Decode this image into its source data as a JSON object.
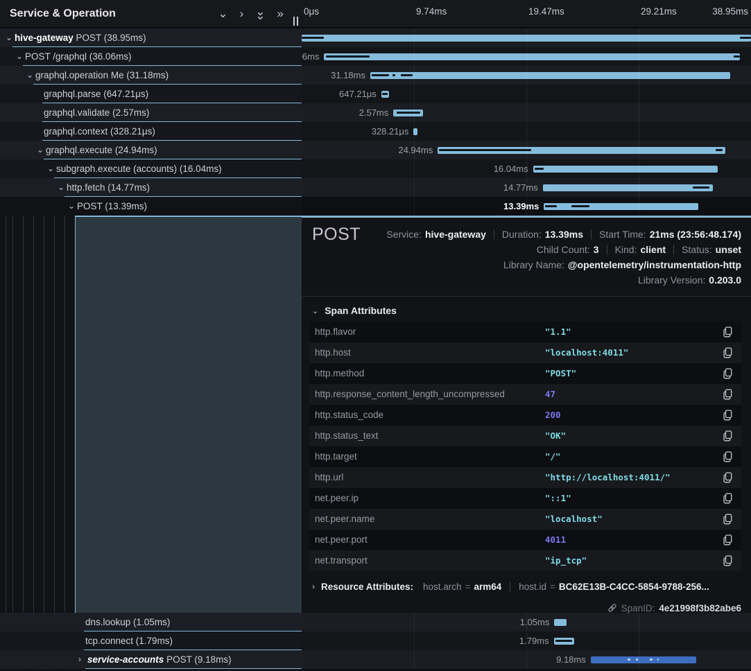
{
  "theme": {
    "accent_blue": "#85bcdc",
    "bar_overlay_dark": "#11181f",
    "service_accounts_bar": "#3d6ec0",
    "service_accounts_dash": "#b9d4ee",
    "string_value_color": "#7fdbe6",
    "number_value_color": "#7a79ef",
    "selected_block_color": "#2b3840",
    "row_underline_color": "#84b7d4"
  },
  "header": {
    "title": "Service & Operation"
  },
  "toolbar_icons": [
    {
      "name": "chevron-down-icon",
      "glyph": "⌄",
      "stacked": false
    },
    {
      "name": "chevron-right-icon",
      "glyph": "›",
      "stacked": false
    },
    {
      "name": "collapse-all-icon",
      "glyph": "⌄",
      "stacked": true
    },
    {
      "name": "expand-all-icon",
      "glyph": "»",
      "stacked": false
    }
  ],
  "timeline": {
    "total_ms": 38.95,
    "ticks": [
      {
        "label": "0μs",
        "pct": 0
      },
      {
        "label": "9.74ms",
        "pct": 25
      },
      {
        "label": "19.47ms",
        "pct": 50
      },
      {
        "label": "29.21ms",
        "pct": 75
      },
      {
        "label": "38.95ms",
        "pct": 100
      }
    ]
  },
  "spans": [
    {
      "section": "top",
      "service": "hive-gateway",
      "italic": false,
      "operation": "POST",
      "duration": "38.95ms",
      "depth": 0,
      "chevron": "down",
      "start_ms": 0,
      "duration_ms": 38.95,
      "selected": false,
      "bar": "default",
      "overlays": [
        [
          0,
          0.05
        ],
        [
          0.975,
          0.025
        ]
      ]
    },
    {
      "section": "top",
      "service": null,
      "operation": "POST /graphql",
      "duration": "36.06ms",
      "depth": 1,
      "chevron": "down",
      "start_ms": 1.95,
      "duration_ms": 36.06,
      "selected": false,
      "bar": "default",
      "overlays": [
        [
          0.004,
          0.105
        ],
        [
          0.985,
          0.015
        ]
      ]
    },
    {
      "section": "top",
      "service": null,
      "operation": "graphql.operation Me",
      "duration": "31.18ms",
      "depth": 2,
      "chevron": "down",
      "start_ms": 5.95,
      "duration_ms": 31.18,
      "selected": false,
      "bar": "default",
      "overlays": [
        [
          0.004,
          0.048
        ],
        [
          0.062,
          0.008
        ],
        [
          0.085,
          0.032
        ]
      ]
    },
    {
      "section": "top",
      "service": null,
      "operation": "graphql.parse",
      "duration": "647.21μs",
      "depth": 3,
      "chevron": null,
      "start_ms": 6.9,
      "duration_ms": 0.647,
      "selected": false,
      "bar": "default",
      "overlays": [
        [
          0.1,
          0.8
        ]
      ]
    },
    {
      "section": "top",
      "service": null,
      "operation": "graphql.validate",
      "duration": "2.57ms",
      "depth": 3,
      "chevron": null,
      "start_ms": 7.95,
      "duration_ms": 2.57,
      "selected": false,
      "bar": "default",
      "overlays": [
        [
          0.1,
          0.8
        ]
      ]
    },
    {
      "section": "top",
      "service": null,
      "operation": "graphql.context",
      "duration": "328.21μs",
      "depth": 3,
      "chevron": null,
      "start_ms": 9.7,
      "duration_ms": 0.328,
      "selected": false,
      "bar": "default",
      "overlays": []
    },
    {
      "section": "top",
      "service": null,
      "operation": "graphql.execute",
      "duration": "24.94ms",
      "depth": 3,
      "chevron": "down",
      "start_ms": 11.8,
      "duration_ms": 24.94,
      "selected": false,
      "bar": "default",
      "overlays": [
        [
          0.005,
          0.32
        ],
        [
          0.965,
          0.025
        ]
      ]
    },
    {
      "section": "top",
      "service": null,
      "operation": "subgraph.execute (accounts)",
      "duration": "16.04ms",
      "depth": 4,
      "chevron": "down",
      "start_ms": 20.05,
      "duration_ms": 16.04,
      "selected": false,
      "bar": "default",
      "overlays": [
        [
          0.008,
          0.05
        ]
      ]
    },
    {
      "section": "top",
      "service": null,
      "operation": "http.fetch",
      "duration": "14.77ms",
      "depth": 5,
      "chevron": "down",
      "start_ms": 20.9,
      "duration_ms": 14.77,
      "selected": false,
      "bar": "default",
      "overlays": [
        [
          0.88,
          0.1
        ]
      ]
    },
    {
      "section": "top",
      "service": null,
      "operation": "POST",
      "duration": "13.39ms",
      "depth": 6,
      "chevron": "down",
      "start_ms": 21.0,
      "duration_ms": 13.39,
      "selected": true,
      "bar": "default",
      "overlays": [
        [
          0.008,
          0.075
        ],
        [
          0.18,
          0.115
        ]
      ]
    },
    {
      "section": "bottom",
      "service": null,
      "operation": "dns.lookup",
      "duration": "1.05ms",
      "depth": 7,
      "chevron": null,
      "start_ms": 21.9,
      "duration_ms": 1.05,
      "selected": false,
      "bar": "default",
      "overlays": []
    },
    {
      "section": "bottom",
      "service": null,
      "operation": "tcp.connect",
      "duration": "1.79ms",
      "depth": 7,
      "chevron": null,
      "start_ms": 21.85,
      "duration_ms": 1.79,
      "selected": false,
      "bar": "default",
      "overlays": [
        [
          0.1,
          0.8
        ]
      ]
    },
    {
      "section": "bottom",
      "service": "service-accounts",
      "italic": true,
      "operation": "POST",
      "duration": "9.18ms",
      "depth": 7,
      "chevron": "right",
      "start_ms": 25.05,
      "duration_ms": 9.18,
      "selected": false,
      "bar": "blue",
      "overlays": [
        [
          0.35,
          0.025
        ],
        [
          0.43,
          0.015
        ],
        [
          0.56,
          0.025
        ],
        [
          0.63,
          0.015
        ]
      ]
    }
  ],
  "detail": {
    "title": "POST",
    "info_rows": [
      {
        "pairs": [
          {
            "label": "Service:",
            "value": "hive-gateway"
          },
          {
            "label": "Duration:",
            "value": "13.39ms"
          },
          {
            "label": "Start Time:",
            "value": "21ms (23:56:48.174)"
          }
        ]
      },
      {
        "pairs": [
          {
            "label": "Child Count:",
            "value": "3"
          },
          {
            "label": "Kind:",
            "value": "client"
          },
          {
            "label": "Status:",
            "value": "unset"
          }
        ]
      },
      {
        "pairs": [
          {
            "label": "Library Name:",
            "value": "@opentelemetry/instrumentation-http"
          }
        ]
      },
      {
        "pairs": [
          {
            "label": "Library Version:",
            "value": "0.203.0"
          }
        ]
      }
    ],
    "span_attributes": {
      "header": "Span Attributes",
      "rows": [
        {
          "key": "http.flavor",
          "value": "\"1.1\"",
          "type": "string"
        },
        {
          "key": "http.host",
          "value": "\"localhost:4011\"",
          "type": "string"
        },
        {
          "key": "http.method",
          "value": "\"POST\"",
          "type": "string"
        },
        {
          "key": "http.response_content_length_uncompressed",
          "value": "47",
          "type": "number"
        },
        {
          "key": "http.status_code",
          "value": "200",
          "type": "number"
        },
        {
          "key": "http.status_text",
          "value": "\"OK\"",
          "type": "string"
        },
        {
          "key": "http.target",
          "value": "\"/\"",
          "type": "string"
        },
        {
          "key": "http.url",
          "value": "\"http://localhost:4011/\"",
          "type": "string"
        },
        {
          "key": "net.peer.ip",
          "value": "\"::1\"",
          "type": "string"
        },
        {
          "key": "net.peer.name",
          "value": "\"localhost\"",
          "type": "string"
        },
        {
          "key": "net.peer.port",
          "value": "4011",
          "type": "number"
        },
        {
          "key": "net.transport",
          "value": "\"ip_tcp\"",
          "type": "string"
        }
      ]
    },
    "resource_attributes": {
      "header": "Resource Attributes:",
      "pairs": [
        {
          "key": "host.arch",
          "value": "arm64"
        },
        {
          "key": "host.id",
          "value": "BC62E13B-C4CC-5854-9788-256..."
        }
      ]
    },
    "span_id": {
      "label": "SpanID:",
      "value": "4e21998f3b82abe6"
    }
  }
}
